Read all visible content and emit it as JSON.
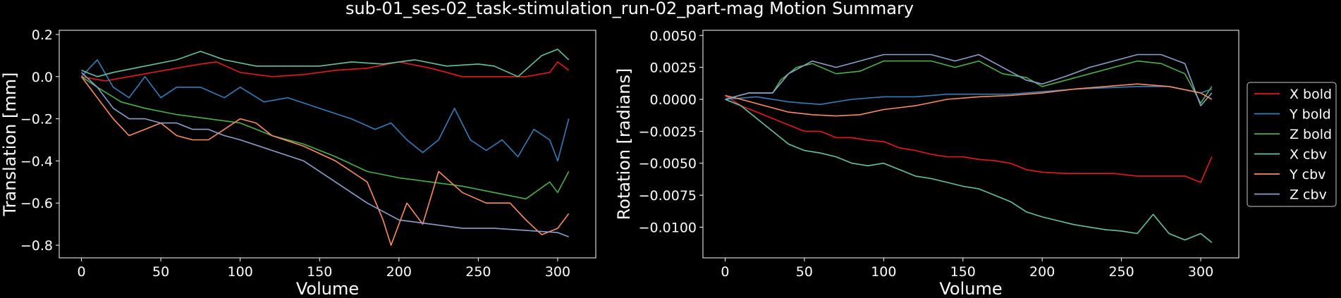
{
  "figure": {
    "title": "sub-01_ses-02_task-stimulation_run-02_part-mag Motion Summary"
  },
  "chart_data": [
    {
      "type": "line",
      "title": "",
      "xlabel": "Volume",
      "ylabel": "Translation [mm]",
      "xlim": [
        -14,
        324
      ],
      "ylim": [
        -0.86,
        0.22
      ],
      "xticks": [
        0,
        50,
        100,
        150,
        200,
        250,
        300
      ],
      "xtick_labels": [
        "0",
        "50",
        "100",
        "150",
        "200",
        "250",
        "300"
      ],
      "yticks": [
        0.2,
        0.0,
        -0.2,
        -0.4,
        -0.6,
        -0.8
      ],
      "ytick_labels": [
        "0.2",
        "0.0",
        "−0.2",
        "−0.4",
        "−0.6",
        "−0.8"
      ],
      "grid": false,
      "series": [
        {
          "name": "X bold",
          "color": "#e41a1c",
          "x": [
            0,
            15,
            30,
            45,
            60,
            75,
            85,
            100,
            120,
            140,
            160,
            180,
            200,
            220,
            240,
            260,
            280,
            295,
            300,
            307
          ],
          "y": [
            0.0,
            -0.02,
            0.0,
            0.02,
            0.04,
            0.06,
            0.07,
            0.02,
            0.0,
            0.01,
            0.03,
            0.04,
            0.07,
            0.04,
            0.0,
            0.0,
            0.0,
            0.02,
            0.07,
            0.03
          ]
        },
        {
          "name": "Y bold",
          "color": "#377eb8",
          "x": [
            0,
            10,
            20,
            30,
            40,
            50,
            60,
            75,
            90,
            100,
            115,
            130,
            150,
            170,
            185,
            195,
            205,
            215,
            225,
            235,
            245,
            255,
            265,
            275,
            285,
            295,
            300,
            307
          ],
          "y": [
            0.0,
            0.08,
            -0.05,
            -0.1,
            0.0,
            -0.1,
            -0.05,
            -0.05,
            -0.1,
            -0.05,
            -0.12,
            -0.1,
            -0.15,
            -0.2,
            -0.25,
            -0.22,
            -0.3,
            -0.36,
            -0.3,
            -0.15,
            -0.3,
            -0.35,
            -0.3,
            -0.38,
            -0.25,
            -0.3,
            -0.4,
            -0.2
          ]
        },
        {
          "name": "Z bold",
          "color": "#4daf4a",
          "x": [
            0,
            10,
            25,
            40,
            60,
            80,
            100,
            120,
            140,
            160,
            180,
            200,
            220,
            240,
            260,
            280,
            295,
            300,
            307
          ],
          "y": [
            0.0,
            -0.05,
            -0.12,
            -0.15,
            -0.18,
            -0.2,
            -0.22,
            -0.28,
            -0.32,
            -0.38,
            -0.45,
            -0.48,
            -0.5,
            -0.52,
            -0.55,
            -0.58,
            -0.5,
            -0.55,
            -0.45
          ]
        },
        {
          "name": "X cbv",
          "color": "#66c2a5",
          "x": [
            0,
            10,
            20,
            40,
            60,
            75,
            90,
            110,
            130,
            150,
            170,
            190,
            210,
            230,
            250,
            260,
            275,
            290,
            300,
            307
          ],
          "y": [
            0.03,
            0.0,
            0.02,
            0.05,
            0.08,
            0.12,
            0.08,
            0.05,
            0.05,
            0.05,
            0.07,
            0.06,
            0.08,
            0.05,
            0.06,
            0.05,
            0.0,
            0.1,
            0.13,
            0.08
          ]
        },
        {
          "name": "Y cbv",
          "color": "#fc8d62",
          "x": [
            0,
            10,
            20,
            30,
            40,
            50,
            60,
            70,
            80,
            90,
            100,
            110,
            120,
            140,
            160,
            180,
            190,
            195,
            205,
            215,
            225,
            240,
            255,
            270,
            280,
            290,
            300,
            307
          ],
          "y": [
            0.0,
            -0.1,
            -0.2,
            -0.28,
            -0.25,
            -0.22,
            -0.28,
            -0.3,
            -0.3,
            -0.25,
            -0.2,
            -0.22,
            -0.28,
            -0.33,
            -0.4,
            -0.5,
            -0.68,
            -0.8,
            -0.6,
            -0.7,
            -0.45,
            -0.55,
            -0.6,
            -0.6,
            -0.68,
            -0.75,
            -0.72,
            -0.65
          ]
        },
        {
          "name": "Z cbv",
          "color": "#8da0cb",
          "x": [
            0,
            10,
            20,
            30,
            40,
            50,
            60,
            70,
            80,
            90,
            100,
            120,
            140,
            160,
            180,
            200,
            220,
            240,
            260,
            280,
            300,
            307
          ],
          "y": [
            0.02,
            -0.05,
            -0.15,
            -0.2,
            -0.2,
            -0.22,
            -0.22,
            -0.25,
            -0.25,
            -0.28,
            -0.3,
            -0.35,
            -0.4,
            -0.5,
            -0.6,
            -0.68,
            -0.7,
            -0.72,
            -0.72,
            -0.73,
            -0.74,
            -0.76
          ]
        }
      ]
    },
    {
      "type": "line",
      "title": "",
      "xlabel": "Volume",
      "ylabel": "Rotation [radians]",
      "xlim": [
        -14,
        324
      ],
      "ylim": [
        -0.0124,
        0.0054
      ],
      "xticks": [
        0,
        50,
        100,
        150,
        200,
        250,
        300
      ],
      "xtick_labels": [
        "0",
        "50",
        "100",
        "150",
        "200",
        "250",
        "300"
      ],
      "yticks": [
        0.005,
        0.0025,
        0.0,
        -0.0025,
        -0.005,
        -0.0075,
        -0.01
      ],
      "ytick_labels": [
        "0.0050",
        "0.0025",
        "0.0000",
        "−0.0025",
        "−0.0050",
        "−0.0075",
        "−0.0100"
      ],
      "grid": false,
      "legend_position": "outside-right",
      "series": [
        {
          "name": "X bold",
          "color": "#e41a1c",
          "x": [
            0,
            10,
            20,
            30,
            40,
            50,
            60,
            70,
            80,
            90,
            100,
            110,
            120,
            130,
            140,
            150,
            160,
            170,
            180,
            190,
            200,
            215,
            230,
            245,
            260,
            275,
            290,
            300,
            307
          ],
          "y": [
            0.0003,
            -0.0005,
            -0.001,
            -0.0015,
            -0.002,
            -0.0025,
            -0.0025,
            -0.003,
            -0.003,
            -0.0032,
            -0.0033,
            -0.0038,
            -0.004,
            -0.0043,
            -0.0045,
            -0.0045,
            -0.0047,
            -0.0048,
            -0.005,
            -0.0055,
            -0.0057,
            -0.0058,
            -0.0058,
            -0.0058,
            -0.006,
            -0.006,
            -0.006,
            -0.0065,
            -0.0045
          ]
        },
        {
          "name": "Y bold",
          "color": "#377eb8",
          "x": [
            0,
            20,
            40,
            60,
            80,
            100,
            120,
            140,
            160,
            180,
            200,
            220,
            240,
            260,
            280,
            300,
            307
          ],
          "y": [
            0.0,
            0.0002,
            -0.0002,
            -0.0004,
            0.0,
            0.0002,
            0.0002,
            0.0004,
            0.0004,
            0.0004,
            0.0006,
            0.0008,
            0.0009,
            0.001,
            0.001,
            0.0005,
            0.0008
          ]
        },
        {
          "name": "Z bold",
          "color": "#4daf4a",
          "x": [
            0,
            15,
            30,
            35,
            45,
            55,
            70,
            85,
            100,
            115,
            130,
            145,
            160,
            175,
            190,
            200,
            215,
            230,
            245,
            260,
            275,
            290,
            300,
            307
          ],
          "y": [
            0.0,
            0.0005,
            0.0005,
            0.0015,
            0.0025,
            0.0028,
            0.002,
            0.0022,
            0.003,
            0.003,
            0.003,
            0.0025,
            0.003,
            0.002,
            0.0017,
            0.001,
            0.0015,
            0.002,
            0.0025,
            0.003,
            0.0028,
            0.002,
            -0.0003,
            0.001
          ]
        },
        {
          "name": "X cbv",
          "color": "#66c2a5",
          "x": [
            0,
            10,
            20,
            30,
            40,
            50,
            60,
            70,
            80,
            90,
            100,
            110,
            120,
            130,
            140,
            150,
            160,
            170,
            180,
            190,
            200,
            210,
            220,
            230,
            240,
            250,
            260,
            270,
            280,
            290,
            300,
            307
          ],
          "y": [
            0.0,
            -0.0005,
            -0.0015,
            -0.0025,
            -0.0035,
            -0.004,
            -0.0042,
            -0.0045,
            -0.005,
            -0.0052,
            -0.005,
            -0.0055,
            -0.006,
            -0.0062,
            -0.0065,
            -0.0068,
            -0.007,
            -0.0075,
            -0.008,
            -0.0088,
            -0.0092,
            -0.0095,
            -0.0098,
            -0.01,
            -0.0102,
            -0.0103,
            -0.0105,
            -0.009,
            -0.0105,
            -0.011,
            -0.0105,
            -0.0112
          ]
        },
        {
          "name": "Y cbv",
          "color": "#fc8d62",
          "x": [
            0,
            10,
            25,
            40,
            55,
            70,
            85,
            100,
            120,
            140,
            160,
            180,
            200,
            220,
            240,
            260,
            280,
            300,
            307
          ],
          "y": [
            0.0003,
            0.0,
            -0.0005,
            -0.001,
            -0.0012,
            -0.0013,
            -0.0012,
            -0.0008,
            -0.0005,
            0.0,
            0.0002,
            0.0003,
            0.0005,
            0.0008,
            0.001,
            0.0012,
            0.001,
            0.0005,
            0.0
          ]
        },
        {
          "name": "Z cbv",
          "color": "#8da0cb",
          "x": [
            0,
            15,
            30,
            40,
            55,
            70,
            85,
            100,
            115,
            130,
            145,
            160,
            175,
            190,
            200,
            215,
            230,
            245,
            260,
            275,
            290,
            300,
            307
          ],
          "y": [
            0.0,
            0.0005,
            0.0005,
            0.002,
            0.003,
            0.0025,
            0.003,
            0.0035,
            0.0035,
            0.0035,
            0.003,
            0.0035,
            0.0025,
            0.0015,
            0.0012,
            0.0018,
            0.0025,
            0.003,
            0.0035,
            0.0035,
            0.0028,
            -0.0005,
            0.0005
          ]
        }
      ]
    }
  ],
  "legend": {
    "entries": [
      "X bold",
      "Y bold",
      "Z bold",
      "X cbv",
      "Y cbv",
      "Z cbv"
    ]
  }
}
